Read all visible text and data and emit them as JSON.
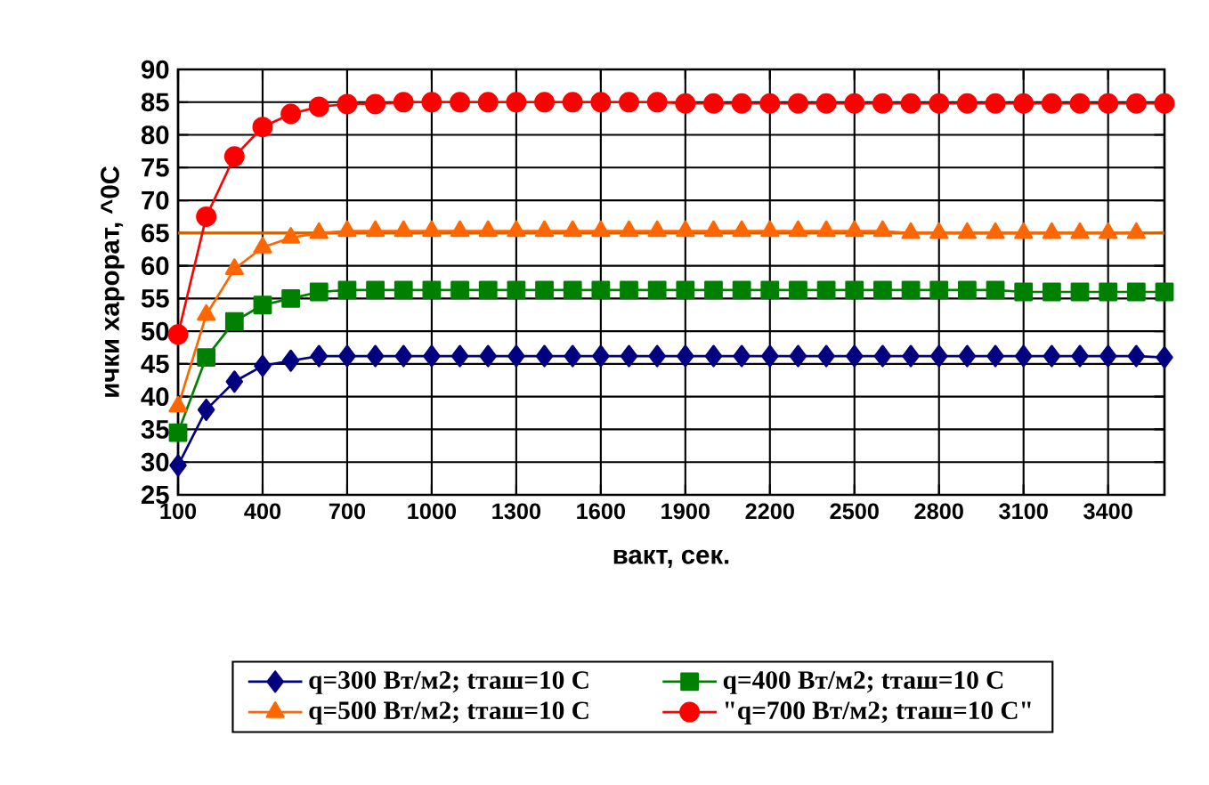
{
  "chart_data": {
    "type": "line",
    "xlabel": "вакт, сек.",
    "ylabel": "ички харорат, ^0C",
    "x": [
      100,
      200,
      300,
      400,
      500,
      600,
      700,
      800,
      900,
      1000,
      1100,
      1200,
      1300,
      1400,
      1500,
      1600,
      1700,
      1800,
      1900,
      2000,
      2100,
      2200,
      2300,
      2400,
      2500,
      2600,
      2700,
      2800,
      2900,
      3000,
      3100,
      3200,
      3300,
      3400,
      3500,
      3600
    ],
    "xlim": [
      100,
      3600
    ],
    "xticks": [
      100,
      400,
      700,
      1000,
      1300,
      1600,
      1900,
      2200,
      2500,
      2800,
      3100,
      3400
    ],
    "ylim": [
      25,
      90
    ],
    "yticks": [
      25,
      30,
      35,
      40,
      45,
      50,
      55,
      60,
      65,
      70,
      75,
      80,
      85,
      90
    ],
    "grid": true,
    "legend": "bottom",
    "ref_lines": [
      {
        "axis": "y",
        "value": 65,
        "color": "#cc6600"
      }
    ],
    "series": [
      {
        "name": "q=300 Вт/м2;  tташ=10 C",
        "color": "#000080",
        "marker": "diamond",
        "values": [
          29.5,
          38,
          42.3,
          44.7,
          45.5,
          46.2,
          46.2,
          46.2,
          46.2,
          46.2,
          46.2,
          46.2,
          46.2,
          46.2,
          46.2,
          46.2,
          46.2,
          46.2,
          46.2,
          46.2,
          46.2,
          46.2,
          46.2,
          46.2,
          46.2,
          46.2,
          46.2,
          46.2,
          46.2,
          46.2,
          46.2,
          46.2,
          46.2,
          46.2,
          46.2,
          46.0
        ]
      },
      {
        "name": "q=400 Вт/м2;  tташ=10 C",
        "color": "#008000",
        "marker": "square",
        "values": [
          34.5,
          46,
          51.5,
          54,
          55,
          56,
          56.3,
          56.3,
          56.3,
          56.3,
          56.3,
          56.3,
          56.3,
          56.3,
          56.3,
          56.3,
          56.3,
          56.3,
          56.3,
          56.3,
          56.3,
          56.3,
          56.3,
          56.3,
          56.3,
          56.3,
          56.3,
          56.3,
          56.3,
          56.3,
          56.0,
          56.0,
          56.0,
          56.0,
          56.0,
          56.0
        ]
      },
      {
        "name": "q=500 Вт/м2;  tташ=10 C",
        "color": "#ff6600",
        "marker": "triangle",
        "values": [
          38.5,
          52.5,
          59.5,
          62.8,
          64.3,
          65,
          65.3,
          65.3,
          65.3,
          65.3,
          65.3,
          65.3,
          65.3,
          65.3,
          65.3,
          65.3,
          65.3,
          65.3,
          65.3,
          65.3,
          65.3,
          65.3,
          65.3,
          65.3,
          65.3,
          65.3,
          65.0,
          65.0,
          65.0,
          65.0,
          65.0,
          65.0,
          65.0,
          65.0,
          65.0,
          null
        ]
      },
      {
        "name": "\"q=700 Вт/м2;  tташ=10 C\"",
        "color": "#ff0000",
        "marker": "circle",
        "values": [
          49.5,
          67.5,
          76.7,
          81.2,
          83.2,
          84.3,
          84.7,
          84.7,
          85,
          85,
          85,
          85,
          85,
          85,
          85,
          85,
          85,
          85,
          84.8,
          84.8,
          84.8,
          84.8,
          84.8,
          84.8,
          84.8,
          84.8,
          84.8,
          84.8,
          84.8,
          84.8,
          84.8,
          84.8,
          84.8,
          84.8,
          84.8,
          84.8
        ]
      }
    ]
  }
}
